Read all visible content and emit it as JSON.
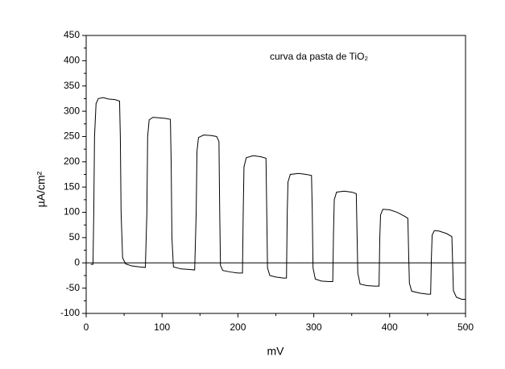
{
  "chart_data": {
    "type": "line",
    "xlabel": "mV",
    "ylabel": "µA/cm²",
    "annotation": "curva da pasta de TiO₂",
    "xlim": [
      0,
      500
    ],
    "xticks": [
      0,
      100,
      200,
      300,
      400,
      500
    ],
    "ylim": [
      -100,
      450
    ],
    "yticks": [
      -100,
      -50,
      0,
      50,
      100,
      150,
      200,
      250,
      300,
      350,
      400,
      450
    ],
    "hline": 0,
    "grid": false,
    "series": [
      {
        "color": "#000000",
        "x": [
          6,
          9,
          10,
          11,
          13,
          16,
          22,
          30,
          38,
          44,
          45,
          46,
          48,
          52,
          60,
          70,
          78,
          80,
          81,
          83,
          88,
          96,
          104,
          111,
          112,
          113,
          115,
          125,
          135,
          143,
          145,
          146,
          148,
          155,
          165,
          172,
          175,
          176,
          177,
          180,
          190,
          200,
          206,
          207,
          208,
          211,
          220,
          230,
          237,
          238,
          239,
          242,
          250,
          260,
          264,
          265,
          266,
          269,
          280,
          290,
          297,
          298,
          299,
          302,
          310,
          320,
          325,
          326,
          327,
          330,
          340,
          350,
          356,
          357,
          358,
          361,
          370,
          380,
          386,
          387,
          388,
          391,
          400,
          410,
          420,
          424,
          425,
          426,
          429,
          440,
          450,
          454,
          455,
          456,
          459,
          465,
          475,
          482,
          483,
          484,
          488,
          495,
          500
        ],
        "values": [
          -3,
          -3,
          100,
          250,
          315,
          325,
          327,
          324,
          323,
          320,
          250,
          100,
          10,
          -2,
          -6,
          -8,
          -9,
          100,
          250,
          283,
          288,
          287,
          286,
          284,
          200,
          50,
          -8,
          -12,
          -13,
          -14,
          100,
          220,
          248,
          253,
          252,
          250,
          240,
          100,
          -5,
          -15,
          -18,
          -20,
          -20,
          100,
          190,
          208,
          212,
          210,
          207,
          100,
          -10,
          -25,
          -28,
          -30,
          -30,
          100,
          160,
          175,
          177,
          175,
          173,
          100,
          -10,
          -32,
          -36,
          -37,
          -37,
          60,
          125,
          140,
          142,
          140,
          137,
          60,
          -20,
          -42,
          -45,
          -46,
          -46,
          50,
          95,
          106,
          105,
          100,
          92,
          88,
          20,
          -40,
          -56,
          -60,
          -62,
          -62,
          10,
          55,
          64,
          63,
          58,
          52,
          0,
          -55,
          -68,
          -72,
          -72
        ]
      }
    ]
  }
}
